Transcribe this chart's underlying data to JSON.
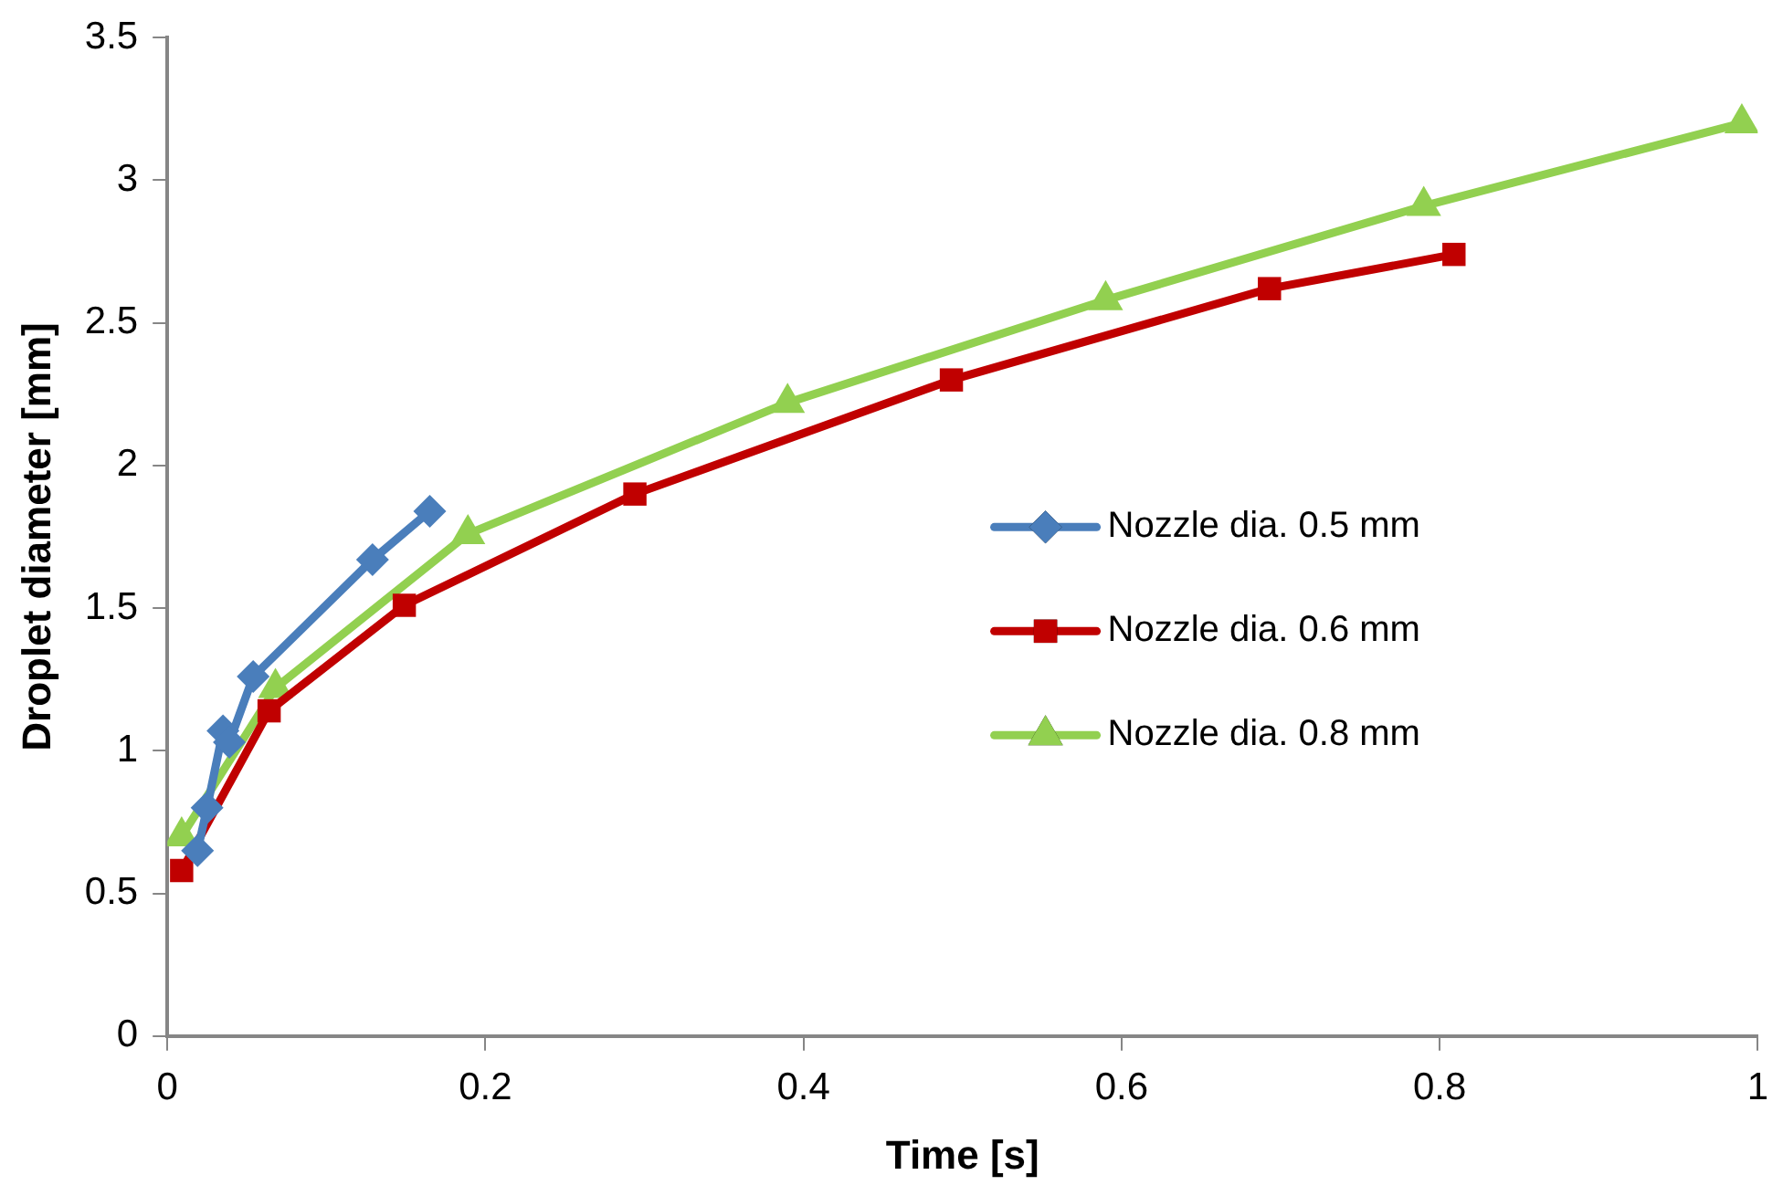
{
  "chart_data": {
    "type": "line",
    "xlabel": "Time [s]",
    "ylabel": "Droplet diameter [mm]",
    "xlim": [
      0,
      1
    ],
    "xticks": [
      0,
      0.2,
      0.4,
      0.6,
      0.8,
      1
    ],
    "ylim": [
      0,
      3.5
    ],
    "yticks": [
      0,
      0.5,
      1,
      1.5,
      2,
      2.5,
      3,
      3.5
    ],
    "grid": false,
    "legend": "right",
    "line_style": "solid",
    "series": [
      {
        "name": "Nozzle dia. 0.5 mm",
        "color": "#4a7ebb",
        "marker": "diamond",
        "x": [
          0.019,
          0.025,
          0.035,
          0.039,
          0.054,
          0.129,
          0.165
        ],
        "values": [
          0.65,
          0.8,
          1.07,
          1.03,
          1.26,
          1.67,
          1.84
        ]
      },
      {
        "name": "Nozzle dia. 0.6 mm",
        "color": "#c00000",
        "marker": "square",
        "x": [
          0.009,
          0.064,
          0.149,
          0.294,
          0.493,
          0.693,
          0.809
        ],
        "values": [
          0.58,
          1.14,
          1.51,
          1.9,
          2.3,
          2.62,
          2.74
        ]
      },
      {
        "name": "Nozzle dia. 0.8 mm",
        "color": "#92d050",
        "marker": "triangle",
        "x": [
          0.009,
          0.068,
          0.189,
          0.39,
          0.59,
          0.79,
          0.99
        ],
        "values": [
          0.7,
          1.22,
          1.76,
          2.22,
          2.58,
          2.91,
          3.2
        ]
      }
    ]
  }
}
